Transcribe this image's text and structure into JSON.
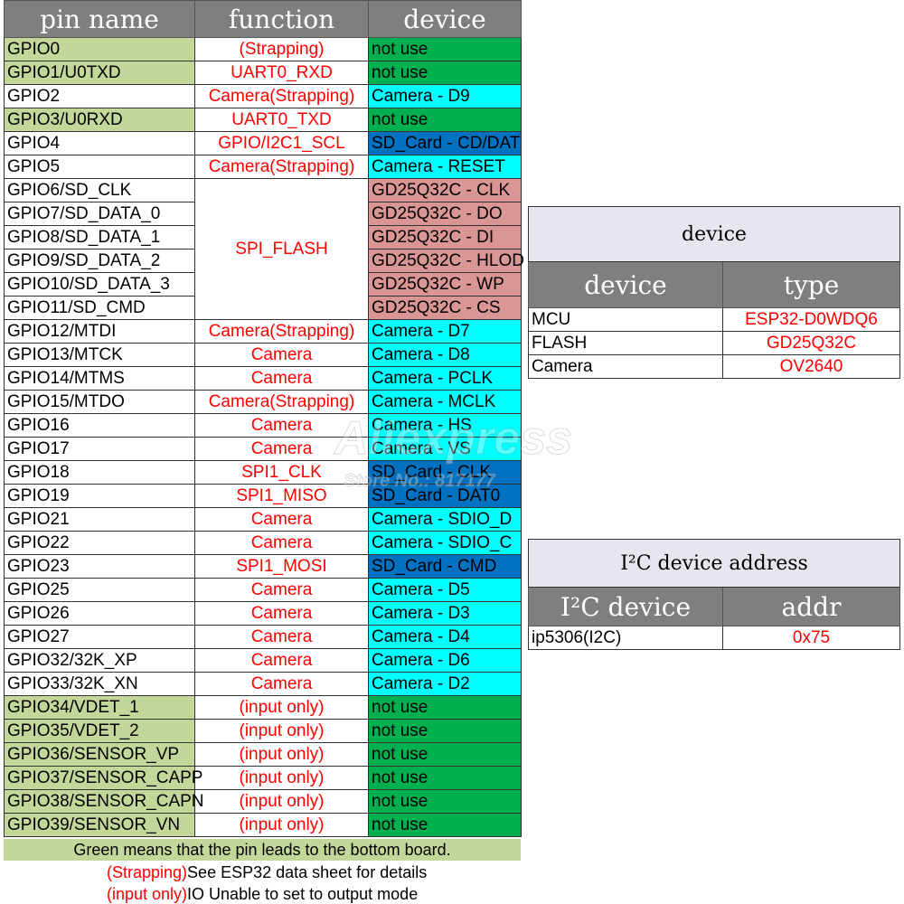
{
  "pin_table": {
    "headers": [
      "pin name",
      "function",
      "device"
    ],
    "rows": [
      {
        "pin": "GPIO0",
        "function": "(Strapping)",
        "device": "not use",
        "pin_green": true,
        "dev_type": "not-use"
      },
      {
        "pin": "GPIO1/U0TXD",
        "function": "UART0_RXD",
        "device": "not use",
        "pin_green": true,
        "dev_type": "not-use"
      },
      {
        "pin": "GPIO2",
        "function": "Camera(Strapping)",
        "device": "Camera - D9",
        "pin_green": false,
        "dev_type": "camera"
      },
      {
        "pin": "GPIO3/U0RXD",
        "function": "UART0_TXD",
        "device": "not use",
        "pin_green": true,
        "dev_type": "not-use"
      },
      {
        "pin": "GPIO4",
        "function": "GPIO/I2C1_SCL",
        "device": "SD_Card - CD/DAT",
        "pin_green": false,
        "dev_type": "sd"
      },
      {
        "pin": "GPIO5",
        "function": "Camera(Strapping)",
        "device": "Camera - RESET",
        "pin_green": false,
        "dev_type": "camera"
      },
      {
        "pin": "GPIO6/SD_CLK",
        "function": "SPI_FLASH",
        "device": "GD25Q32C - CLK",
        "pin_green": false,
        "dev_type": "flash",
        "fn_rowspan": 6
      },
      {
        "pin": "GPIO7/SD_DATA_0",
        "function": null,
        "device": "GD25Q32C - DO",
        "pin_green": false,
        "dev_type": "flash"
      },
      {
        "pin": "GPIO8/SD_DATA_1",
        "function": null,
        "device": "GD25Q32C - DI",
        "pin_green": false,
        "dev_type": "flash"
      },
      {
        "pin": "GPIO9/SD_DATA_2",
        "function": null,
        "device": "GD25Q32C - HLOD",
        "pin_green": false,
        "dev_type": "flash"
      },
      {
        "pin": "GPIO10/SD_DATA_3",
        "function": null,
        "device": "GD25Q32C - WP",
        "pin_green": false,
        "dev_type": "flash"
      },
      {
        "pin": "GPIO11/SD_CMD",
        "function": null,
        "device": "GD25Q32C - CS",
        "pin_green": false,
        "dev_type": "flash"
      },
      {
        "pin": "GPIO12/MTDI",
        "function": "Camera(Strapping)",
        "device": "Camera - D7",
        "pin_green": false,
        "dev_type": "camera"
      },
      {
        "pin": "GPIO13/MTCK",
        "function": "Camera",
        "device": "Camera - D8",
        "pin_green": false,
        "dev_type": "camera"
      },
      {
        "pin": "GPIO14/MTMS",
        "function": "Camera",
        "device": "Camera - PCLK",
        "pin_green": false,
        "dev_type": "camera"
      },
      {
        "pin": "GPIO15/MTDO",
        "function": "Camera(Strapping)",
        "device": "Camera - MCLK",
        "pin_green": false,
        "dev_type": "camera"
      },
      {
        "pin": "GPIO16",
        "function": "Camera",
        "device": "Camera - HS",
        "pin_green": false,
        "dev_type": "camera"
      },
      {
        "pin": "GPIO17",
        "function": "Camera",
        "device": "Camera - VS",
        "pin_green": false,
        "dev_type": "camera"
      },
      {
        "pin": "GPIO18",
        "function": "SPI1_CLK",
        "device": "SD_Card - CLK",
        "pin_green": false,
        "dev_type": "sd"
      },
      {
        "pin": "GPIO19",
        "function": "SPI1_MISO",
        "device": "SD_Card - DAT0",
        "pin_green": false,
        "dev_type": "sd"
      },
      {
        "pin": "GPIO21",
        "function": "Camera",
        "device": "Camera - SDIO_D",
        "pin_green": false,
        "dev_type": "camera"
      },
      {
        "pin": "GPIO22",
        "function": "Camera",
        "device": "Camera - SDIO_C",
        "pin_green": false,
        "dev_type": "camera"
      },
      {
        "pin": "GPIO23",
        "function": "SPI1_MOSI",
        "device": "SD_Card - CMD",
        "pin_green": false,
        "dev_type": "sd"
      },
      {
        "pin": "GPIO25",
        "function": "Camera",
        "device": "Camera - D5",
        "pin_green": false,
        "dev_type": "camera"
      },
      {
        "pin": "GPIO26",
        "function": "Camera",
        "device": "Camera - D3",
        "pin_green": false,
        "dev_type": "camera"
      },
      {
        "pin": "GPIO27",
        "function": "Camera",
        "device": "Camera - D4",
        "pin_green": false,
        "dev_type": "camera"
      },
      {
        "pin": "GPIO32/32K_XP",
        "function": "Camera",
        "device": "Camera - D6",
        "pin_green": false,
        "dev_type": "camera"
      },
      {
        "pin": "GPIO33/32K_XN",
        "function": "Camera",
        "device": "Camera - D2",
        "pin_green": false,
        "dev_type": "camera"
      },
      {
        "pin": "GPIO34/VDET_1",
        "function": "(input only)",
        "device": "not use",
        "pin_green": true,
        "dev_type": "not-use"
      },
      {
        "pin": "GPIO35/VDET_2",
        "function": "(input only)",
        "device": "not use",
        "pin_green": true,
        "dev_type": "not-use"
      },
      {
        "pin": "GPIO36/SENSOR_VP",
        "function": "(input only)",
        "device": "not use",
        "pin_green": true,
        "dev_type": "not-use"
      },
      {
        "pin": "GPIO37/SENSOR_CAPP",
        "function": "(input only)",
        "device": "not use",
        "pin_green": true,
        "dev_type": "not-use"
      },
      {
        "pin": "GPIO38/SENSOR_CAPN",
        "function": "(input only)",
        "device": "not use",
        "pin_green": true,
        "dev_type": "not-use"
      },
      {
        "pin": "GPIO39/SENSOR_VN",
        "function": "(input only)",
        "device": "not use",
        "pin_green": true,
        "dev_type": "not-use"
      }
    ]
  },
  "footer": {
    "note": "Green means that the pin leads to the bottom board.",
    "legend_strapping_key": "(Strapping)",
    "legend_strapping_text": "See ESP32 data sheet for details",
    "legend_input_key": "(input only)",
    "legend_input_text": "IO Unable to set to output mode"
  },
  "device_table": {
    "caption": "device",
    "headers": [
      "device",
      "type"
    ],
    "rows": [
      {
        "device": "MCU",
        "type": "ESP32-D0WDQ6"
      },
      {
        "device": "FLASH",
        "type": "GD25Q32C"
      },
      {
        "device": "Camera",
        "type": "OV2640"
      }
    ]
  },
  "i2c_table": {
    "caption": "I²C device address",
    "headers": [
      "I²C device",
      "addr"
    ],
    "rows": [
      {
        "device": "ip5306(I2C)",
        "addr": "0x75"
      }
    ]
  },
  "watermark": {
    "brand": "Aliexpress",
    "store": "Store No.: 817177"
  },
  "colors": {
    "header_gray": "#7f7f7f",
    "pin_green": "#c4d79b",
    "not_use_green": "#00b050",
    "camera_cyan": "#00ffff",
    "sd_blue": "#0070c0",
    "flash_rose": "#da9694",
    "function_red": "#ff0000"
  }
}
